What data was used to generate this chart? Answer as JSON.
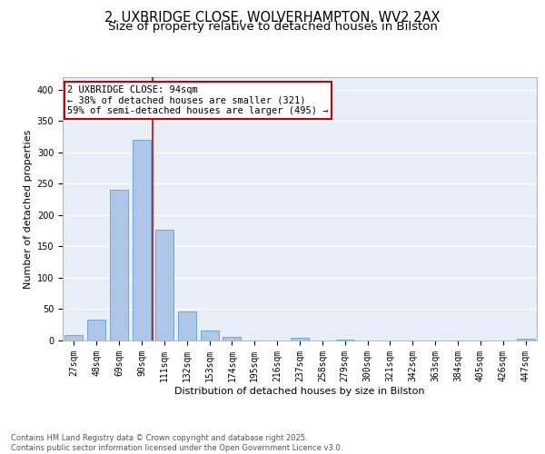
{
  "title_line1": "2, UXBRIDGE CLOSE, WOLVERHAMPTON, WV2 2AX",
  "title_line2": "Size of property relative to detached houses in Bilston",
  "xlabel": "Distribution of detached houses by size in Bilston",
  "ylabel": "Number of detached properties",
  "categories": [
    "27sqm",
    "48sqm",
    "69sqm",
    "90sqm",
    "111sqm",
    "132sqm",
    "153sqm",
    "174sqm",
    "195sqm",
    "216sqm",
    "237sqm",
    "258sqm",
    "279sqm",
    "300sqm",
    "321sqm",
    "342sqm",
    "363sqm",
    "384sqm",
    "405sqm",
    "426sqm",
    "447sqm"
  ],
  "values": [
    8,
    33,
    240,
    320,
    177,
    46,
    16,
    6,
    0,
    0,
    4,
    0,
    2,
    0,
    0,
    0,
    0,
    0,
    0,
    0,
    3
  ],
  "bar_color": "#aec6e8",
  "bar_edge_color": "#5a9fd4",
  "vline_index": 3,
  "vline_color": "#cc0000",
  "annotation_text": "2 UXBRIDGE CLOSE: 94sqm\n← 38% of detached houses are smaller (321)\n59% of semi-detached houses are larger (495) →",
  "annotation_box_color": "#cc0000",
  "ylim": [
    0,
    420
  ],
  "yticks": [
    0,
    50,
    100,
    150,
    200,
    250,
    300,
    350,
    400
  ],
  "background_color": "#e8eef8",
  "grid_color": "#ffffff",
  "footer_text": "Contains HM Land Registry data © Crown copyright and database right 2025.\nContains public sector information licensed under the Open Government Licence v3.0.",
  "title_fontsize": 10.5,
  "subtitle_fontsize": 9.5,
  "axis_label_fontsize": 8,
  "tick_fontsize": 7,
  "annotation_fontsize": 7.5,
  "footer_fontsize": 6
}
